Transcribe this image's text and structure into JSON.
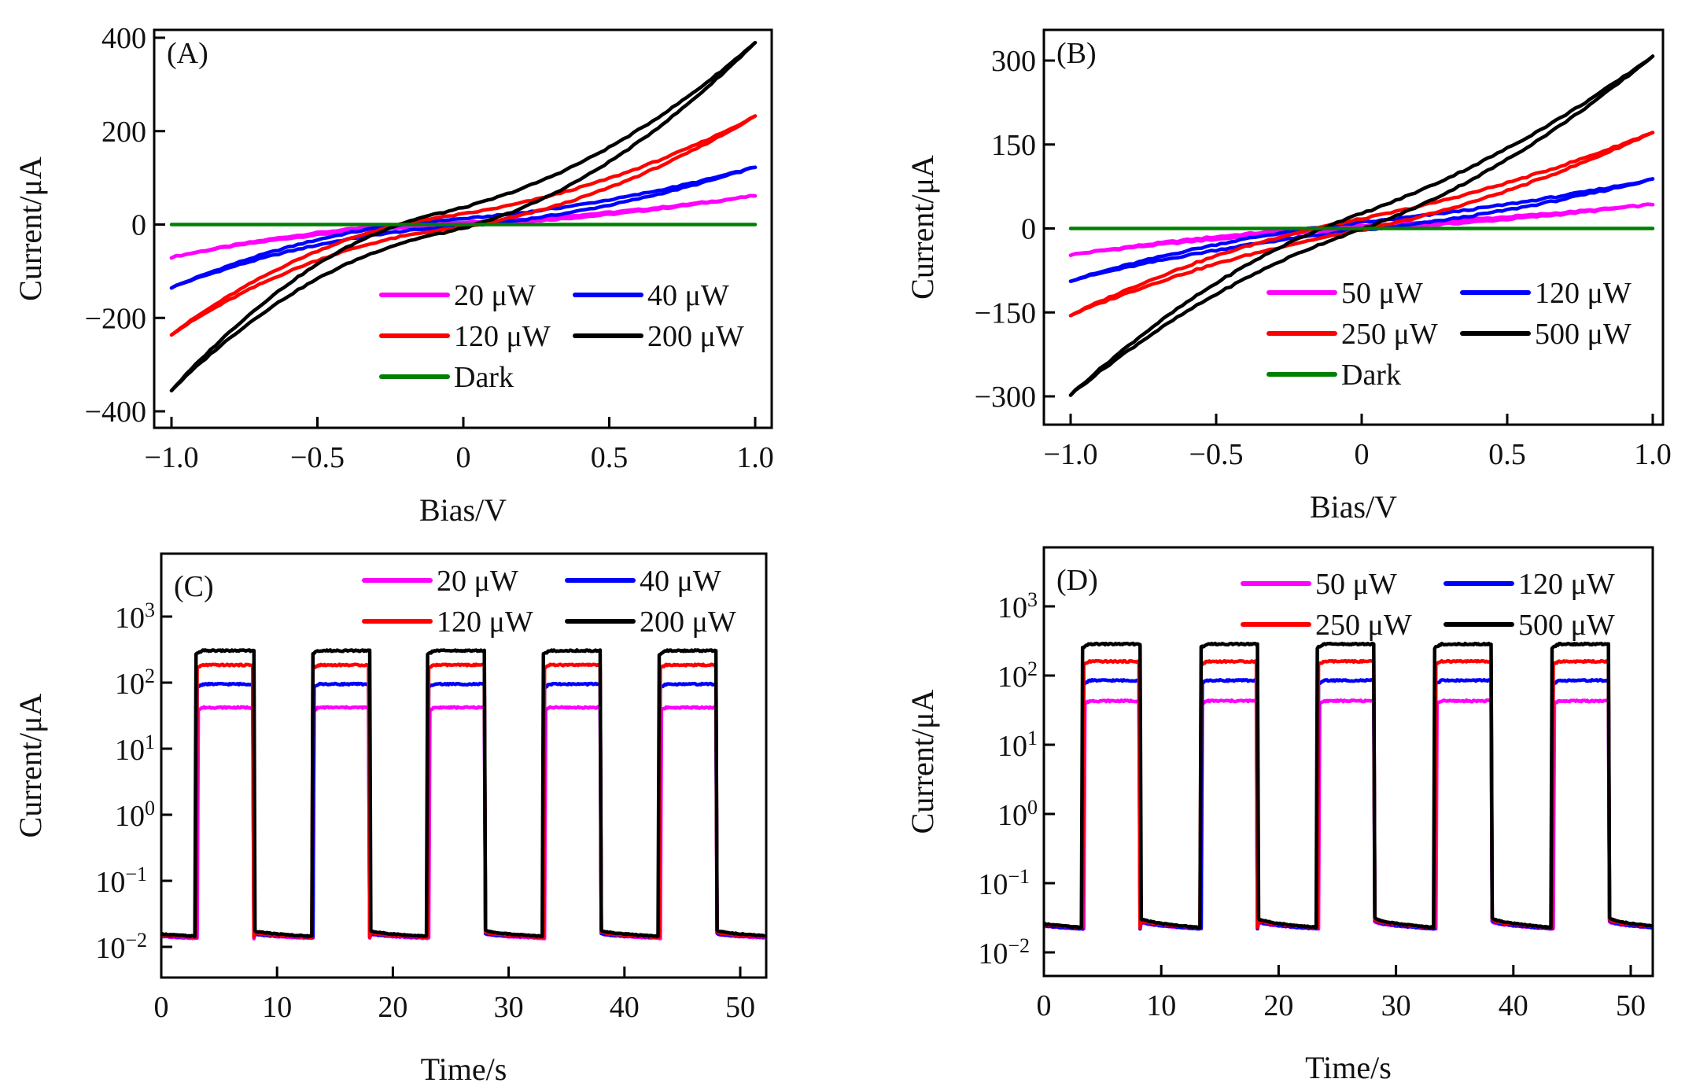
{
  "figure": {
    "panels": [
      "A",
      "B",
      "C",
      "D"
    ]
  },
  "chart_data": [
    {
      "id": "A",
      "type": "line",
      "panel_label": "(A)",
      "title": "",
      "xlabel": "Bias/V",
      "ylabel": "Current/μA",
      "xlim": [
        -1.0,
        1.0
      ],
      "ylim": [
        -400,
        400
      ],
      "xticks": [
        -1.0,
        -0.5,
        0,
        0.5,
        1.0
      ],
      "xtick_labels": [
        "−1.0",
        "−0.5",
        "0",
        "0.5",
        "1.0"
      ],
      "yticks": [
        400,
        200,
        0,
        -200,
        -400
      ],
      "ytick_labels": [
        "400",
        "200",
        "0",
        "−200",
        "−400"
      ],
      "legend_position": "bottom-right",
      "legend_columns": 2,
      "series": [
        {
          "name": "20 μW",
          "color": "#ff00ff",
          "x_start": -1.0,
          "x_end": 1.0,
          "y_at_start": -70,
          "y_at_end": 62,
          "zero_crossing": -0.1,
          "hysteresis": 3
        },
        {
          "name": "40 μW",
          "color": "#0000ff",
          "x_start": -1.0,
          "x_end": 1.0,
          "y_at_start": -135,
          "y_at_end": 123,
          "zero_crossing": -0.1,
          "hysteresis": 8
        },
        {
          "name": "120 μW",
          "color": "#ff0000",
          "x_start": -1.0,
          "x_end": 1.0,
          "y_at_start": -235,
          "y_at_end": 232,
          "zero_crossing": -0.1,
          "hysteresis": 14
        },
        {
          "name": "200 μW",
          "color": "#000000",
          "x_start": -1.0,
          "x_end": 1.0,
          "y_at_start": -355,
          "y_at_end": 390,
          "zero_crossing": -0.1,
          "hysteresis": 22
        },
        {
          "name": "Dark",
          "color": "#008000",
          "x_start": -1.0,
          "x_end": 1.0,
          "y_at_start": 0,
          "y_at_end": 0,
          "zero_crossing": -0.1,
          "hysteresis": 0
        }
      ]
    },
    {
      "id": "B",
      "type": "line",
      "panel_label": "(B)",
      "title": "",
      "xlabel": "Bias/V",
      "ylabel": "Current/μA",
      "xlim": [
        -1.0,
        1.0
      ],
      "ylim": [
        -345,
        345
      ],
      "xticks": [
        -1.0,
        -0.5,
        0,
        0.5,
        1.0
      ],
      "xtick_labels": [
        "−1.0",
        "−0.5",
        "0",
        "0.5",
        "1.0"
      ],
      "yticks": [
        300,
        150,
        0,
        -150,
        -300
      ],
      "ytick_labels": [
        "300",
        "150",
        "0",
        "−150",
        "−300"
      ],
      "legend_position": "bottom-right",
      "legend_columns": 2,
      "series": [
        {
          "name": "50 μW",
          "color": "#ff00ff",
          "x_start": -1.0,
          "x_end": 1.0,
          "y_at_start": -47,
          "y_at_end": 43,
          "zero_crossing": -0.07,
          "hysteresis": 3
        },
        {
          "name": "120 μW",
          "color": "#0000ff",
          "x_start": -1.0,
          "x_end": 1.0,
          "y_at_start": -93,
          "y_at_end": 88,
          "zero_crossing": -0.07,
          "hysteresis": 7
        },
        {
          "name": "250 μW",
          "color": "#ff0000",
          "x_start": -1.0,
          "x_end": 1.0,
          "y_at_start": -155,
          "y_at_end": 172,
          "zero_crossing": -0.07,
          "hysteresis": 10
        },
        {
          "name": "500 μW",
          "color": "#000000",
          "x_start": -1.0,
          "x_end": 1.0,
          "y_at_start": -297,
          "y_at_end": 308,
          "zero_crossing": -0.07,
          "hysteresis": 14
        },
        {
          "name": "Dark",
          "color": "#008000",
          "x_start": -1.0,
          "x_end": 1.0,
          "y_at_start": 0,
          "y_at_end": 0,
          "zero_crossing": -0.07,
          "hysteresis": 0
        }
      ]
    },
    {
      "id": "C",
      "type": "line",
      "yscale": "log",
      "panel_label": "(C)",
      "title": "",
      "xlabel": "Time/s",
      "ylabel": "Current/μA",
      "xlim": [
        0,
        52
      ],
      "ylim": [
        0.0035,
        8000
      ],
      "xticks": [
        0,
        10,
        20,
        30,
        40,
        50
      ],
      "xtick_labels": [
        "0",
        "10",
        "20",
        "30",
        "40",
        "50"
      ],
      "yticks": [
        1000,
        100,
        10,
        1,
        0.1,
        0.01
      ],
      "ytick_labels": [
        [
          "10",
          "3"
        ],
        [
          "10",
          "2"
        ],
        [
          "10",
          "1"
        ],
        [
          "10",
          "0"
        ],
        [
          "10",
          "−1"
        ],
        [
          "10",
          "−2"
        ]
      ],
      "legend_position": "top-right",
      "legend_columns": 2,
      "light_on_intervals": [
        [
          3,
          8
        ],
        [
          13,
          18
        ],
        [
          23,
          28
        ],
        [
          33,
          38
        ],
        [
          43,
          48
        ]
      ],
      "series": [
        {
          "name": "20 μW",
          "color": "#ff00ff",
          "on_current": 42,
          "dark_current_start": 0.016,
          "dark_current_end": 0.0135
        },
        {
          "name": "40 μW",
          "color": "#0000ff",
          "on_current": 95,
          "dark_current_start": 0.016,
          "dark_current_end": 0.014
        },
        {
          "name": "120 μW",
          "color": "#ff0000",
          "on_current": 185,
          "dark_current_start": 0.017,
          "dark_current_end": 0.014
        },
        {
          "name": "200 μW",
          "color": "#000000",
          "on_current": 305,
          "dark_current_start": 0.018,
          "dark_current_end": 0.0145
        }
      ]
    },
    {
      "id": "D",
      "type": "line",
      "yscale": "log",
      "panel_label": "(D)",
      "title": "",
      "xlabel": "Time/s",
      "ylabel": "Current/μA",
      "xlim": [
        0,
        52
      ],
      "ylim": [
        0.005,
        6000
      ],
      "xticks": [
        0,
        10,
        20,
        30,
        40,
        50
      ],
      "xtick_labels": [
        "0",
        "10",
        "20",
        "30",
        "40",
        "50"
      ],
      "yticks": [
        1000,
        100,
        10,
        1,
        0.1,
        0.01
      ],
      "ytick_labels": [
        [
          "10",
          "3"
        ],
        [
          "10",
          "2"
        ],
        [
          "10",
          "1"
        ],
        [
          "10",
          "0"
        ],
        [
          "10",
          "−1"
        ],
        [
          "10",
          "−2"
        ]
      ],
      "legend_position": "top-right",
      "legend_columns": 2,
      "light_on_intervals": [
        [
          3.3,
          8.2
        ],
        [
          13.3,
          18.2
        ],
        [
          23.3,
          28.2
        ],
        [
          33.3,
          38.2
        ],
        [
          43.3,
          48.2
        ]
      ],
      "series": [
        {
          "name": "50 μW",
          "color": "#ff00ff",
          "on_current": 43,
          "dark_current_start": 0.028,
          "dark_current_end": 0.022
        },
        {
          "name": "120 μW",
          "color": "#0000ff",
          "on_current": 85,
          "dark_current_start": 0.029,
          "dark_current_end": 0.022
        },
        {
          "name": "250 μW",
          "color": "#ff0000",
          "on_current": 160,
          "dark_current_start": 0.03,
          "dark_current_end": 0.023
        },
        {
          "name": "500 μW",
          "color": "#000000",
          "on_current": 285,
          "dark_current_start": 0.032,
          "dark_current_end": 0.023
        }
      ]
    }
  ]
}
